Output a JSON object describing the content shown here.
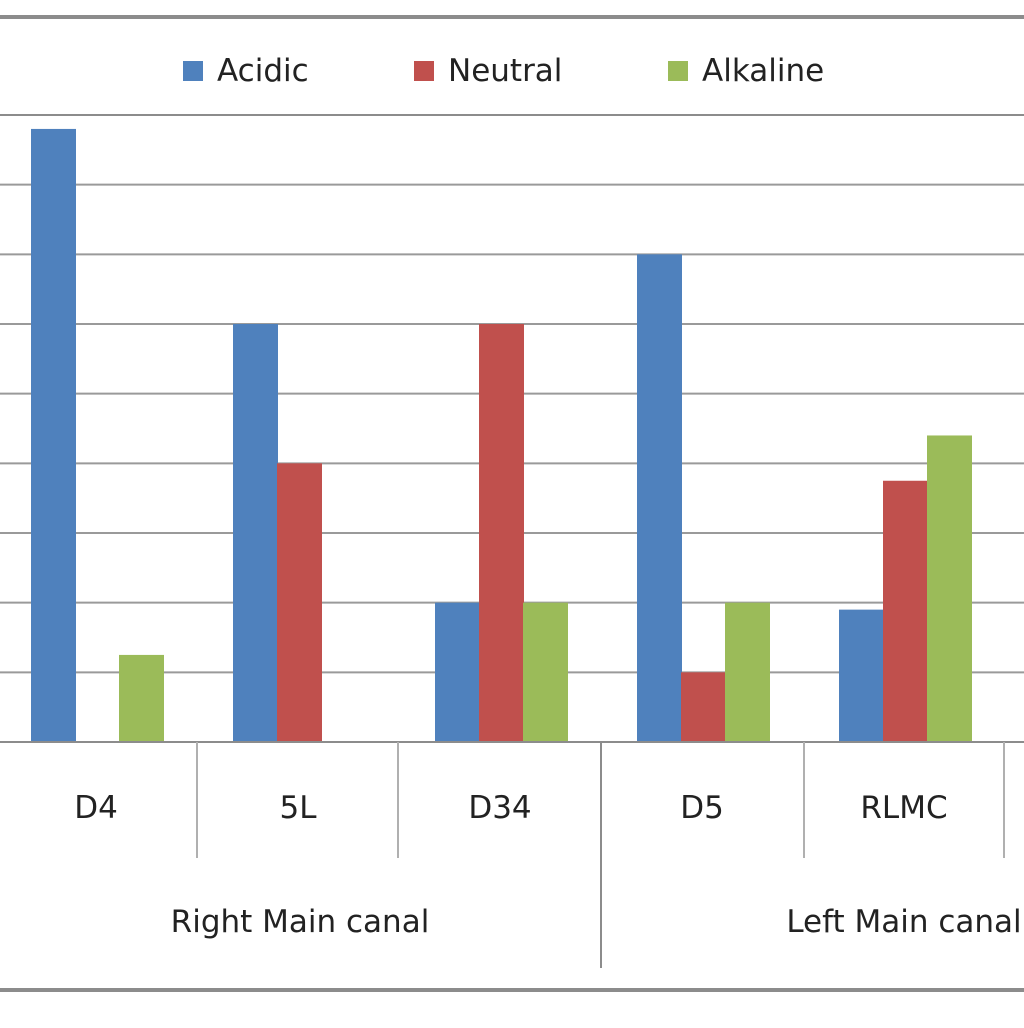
{
  "chart_data": {
    "type": "bar",
    "title": "",
    "xlabel": "",
    "ylabel": "",
    "ylim": [
      0,
      9
    ],
    "grid": true,
    "legend_position": "top",
    "categories": [
      "D4",
      "5L",
      "D34",
      "D5",
      "RLMC"
    ],
    "groups": [
      {
        "label": "Right Main canal",
        "categories": [
          "D4",
          "5L",
          "D34"
        ]
      },
      {
        "label": "Left Main canal",
        "categories": [
          "D5",
          "RLMC"
        ]
      }
    ],
    "series": [
      {
        "name": "Acidic",
        "color": "#4F81BD",
        "values": [
          8.8,
          6.0,
          2.0,
          7.0,
          1.9
        ]
      },
      {
        "name": "Neutral",
        "color": "#C0504D",
        "values": [
          0,
          4.0,
          6.0,
          1.0,
          3.75
        ]
      },
      {
        "name": "Alkaline",
        "color": "#9BBB59",
        "values": [
          1.25,
          0,
          2.0,
          2.0,
          4.4
        ]
      }
    ]
  }
}
